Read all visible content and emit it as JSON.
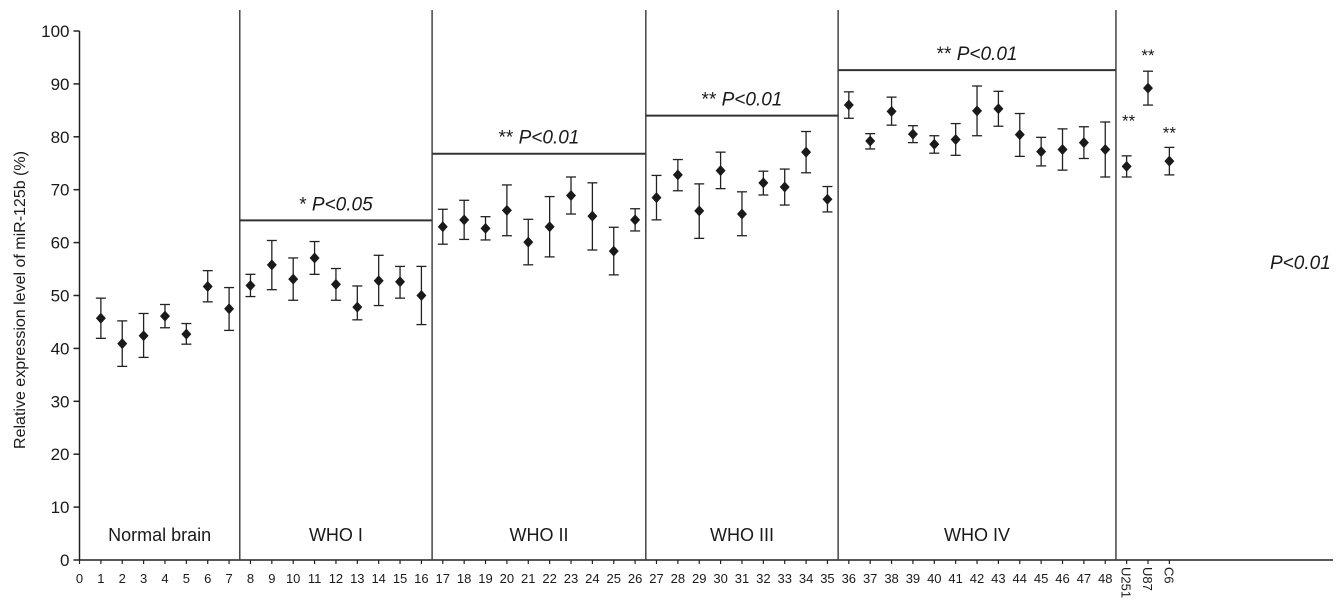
{
  "chart_data": {
    "type": "scatter",
    "ylabel": "Relative expression level of miR-125b (%)",
    "ylim": [
      0,
      100
    ],
    "yticks": [
      0,
      10,
      20,
      30,
      40,
      50,
      60,
      70,
      80,
      90,
      100
    ],
    "xticks": [
      "0",
      "1",
      "2",
      "3",
      "4",
      "5",
      "6",
      "7",
      "8",
      "9",
      "10",
      "11",
      "12",
      "13",
      "14",
      "15",
      "16",
      "17",
      "18",
      "19",
      "20",
      "21",
      "22",
      "23",
      "24",
      "25",
      "26",
      "27",
      "28",
      "29",
      "30",
      "31",
      "32",
      "33",
      "34",
      "35",
      "36",
      "37",
      "38",
      "39",
      "40",
      "41",
      "42",
      "43",
      "44",
      "45",
      "46",
      "47",
      "48",
      "U251",
      "U87",
      "C6"
    ],
    "groups": [
      {
        "label": "Normal brain",
        "annotation": "",
        "level": null
      },
      {
        "label": "WHO I",
        "annotation_prefix": "* ",
        "annotation_p": "P<0.05",
        "level": 64.2
      },
      {
        "label": "WHO II",
        "annotation_prefix": "** ",
        "annotation_p": "P<0.01",
        "level": 76.8
      },
      {
        "label": "WHO III",
        "annotation_prefix": "** ",
        "annotation_p": "P<0.01",
        "level": 84.0
      },
      {
        "label": "WHO IV",
        "annotation_prefix": "** ",
        "annotation_p": "P<0.01",
        "level": 92.6
      }
    ],
    "cell_line_note": "P<0.01",
    "points": [
      {
        "x": "1",
        "y": 45.7,
        "lo": 41.9,
        "hi": 49.5
      },
      {
        "x": "2",
        "y": 40.9,
        "lo": 36.6,
        "hi": 45.2
      },
      {
        "x": "3",
        "y": 42.4,
        "lo": 38.3,
        "hi": 46.6
      },
      {
        "x": "4",
        "y": 46.1,
        "lo": 43.9,
        "hi": 48.3
      },
      {
        "x": "5",
        "y": 42.7,
        "lo": 40.8,
        "hi": 44.7
      },
      {
        "x": "6",
        "y": 51.7,
        "lo": 48.8,
        "hi": 54.7
      },
      {
        "x": "7",
        "y": 47.5,
        "lo": 43.4,
        "hi": 51.5
      },
      {
        "x": "8",
        "y": 51.9,
        "lo": 49.8,
        "hi": 54.0
      },
      {
        "x": "9",
        "y": 55.8,
        "lo": 51.1,
        "hi": 60.4
      },
      {
        "x": "10",
        "y": 53.1,
        "lo": 49.1,
        "hi": 57.1
      },
      {
        "x": "11",
        "y": 57.1,
        "lo": 54.0,
        "hi": 60.2
      },
      {
        "x": "12",
        "y": 52.1,
        "lo": 49.1,
        "hi": 55.1
      },
      {
        "x": "13",
        "y": 47.8,
        "lo": 45.4,
        "hi": 51.8
      },
      {
        "x": "14",
        "y": 52.8,
        "lo": 48.1,
        "hi": 57.6
      },
      {
        "x": "15",
        "y": 52.6,
        "lo": 49.5,
        "hi": 55.5
      },
      {
        "x": "16",
        "y": 50.0,
        "lo": 44.5,
        "hi": 55.5
      },
      {
        "x": "17",
        "y": 63.0,
        "lo": 59.7,
        "hi": 66.3
      },
      {
        "x": "18",
        "y": 64.3,
        "lo": 60.6,
        "hi": 68.0
      },
      {
        "x": "19",
        "y": 62.7,
        "lo": 60.5,
        "hi": 64.9
      },
      {
        "x": "20",
        "y": 66.1,
        "lo": 61.3,
        "hi": 70.9
      },
      {
        "x": "21",
        "y": 60.1,
        "lo": 55.8,
        "hi": 64.4
      },
      {
        "x": "22",
        "y": 63.0,
        "lo": 57.3,
        "hi": 68.7
      },
      {
        "x": "23",
        "y": 68.9,
        "lo": 65.4,
        "hi": 72.4
      },
      {
        "x": "24",
        "y": 65.0,
        "lo": 58.6,
        "hi": 71.3
      },
      {
        "x": "25",
        "y": 58.4,
        "lo": 53.9,
        "hi": 62.9
      },
      {
        "x": "26",
        "y": 64.3,
        "lo": 62.2,
        "hi": 66.4
      },
      {
        "x": "27",
        "y": 68.5,
        "lo": 64.3,
        "hi": 72.7
      },
      {
        "x": "28",
        "y": 72.8,
        "lo": 69.8,
        "hi": 75.7
      },
      {
        "x": "29",
        "y": 66.0,
        "lo": 60.8,
        "hi": 71.1
      },
      {
        "x": "30",
        "y": 73.6,
        "lo": 70.2,
        "hi": 77.1
      },
      {
        "x": "31",
        "y": 65.4,
        "lo": 61.3,
        "hi": 69.6
      },
      {
        "x": "32",
        "y": 71.3,
        "lo": 69.0,
        "hi": 73.5
      },
      {
        "x": "33",
        "y": 70.5,
        "lo": 67.1,
        "hi": 73.9
      },
      {
        "x": "34",
        "y": 77.1,
        "lo": 73.2,
        "hi": 81.0
      },
      {
        "x": "35",
        "y": 68.2,
        "lo": 65.8,
        "hi": 70.6
      },
      {
        "x": "36",
        "y": 86.0,
        "lo": 83.5,
        "hi": 88.5
      },
      {
        "x": "37",
        "y": 79.2,
        "lo": 77.7,
        "hi": 80.6
      },
      {
        "x": "38",
        "y": 84.8,
        "lo": 82.2,
        "hi": 87.5
      },
      {
        "x": "39",
        "y": 80.5,
        "lo": 78.9,
        "hi": 82.1
      },
      {
        "x": "40",
        "y": 78.6,
        "lo": 76.9,
        "hi": 80.2
      },
      {
        "x": "41",
        "y": 79.5,
        "lo": 76.5,
        "hi": 82.5
      },
      {
        "x": "42",
        "y": 84.9,
        "lo": 80.2,
        "hi": 89.6
      },
      {
        "x": "43",
        "y": 85.3,
        "lo": 82.0,
        "hi": 88.6
      },
      {
        "x": "44",
        "y": 80.4,
        "lo": 76.3,
        "hi": 84.4
      },
      {
        "x": "45",
        "y": 77.2,
        "lo": 74.5,
        "hi": 79.9
      },
      {
        "x": "46",
        "y": 77.6,
        "lo": 73.7,
        "hi": 81.5
      },
      {
        "x": "47",
        "y": 78.9,
        "lo": 75.9,
        "hi": 81.9
      },
      {
        "x": "48",
        "y": 77.6,
        "lo": 72.4,
        "hi": 82.8
      },
      {
        "x": "U251",
        "y": 74.4,
        "lo": 72.4,
        "hi": 76.4,
        "label": "**"
      },
      {
        "x": "U87",
        "y": 89.2,
        "lo": 86.0,
        "hi": 92.4,
        "label": "**"
      },
      {
        "x": "C6",
        "y": 75.4,
        "lo": 72.8,
        "hi": 78.0,
        "label": "**"
      }
    ]
  }
}
